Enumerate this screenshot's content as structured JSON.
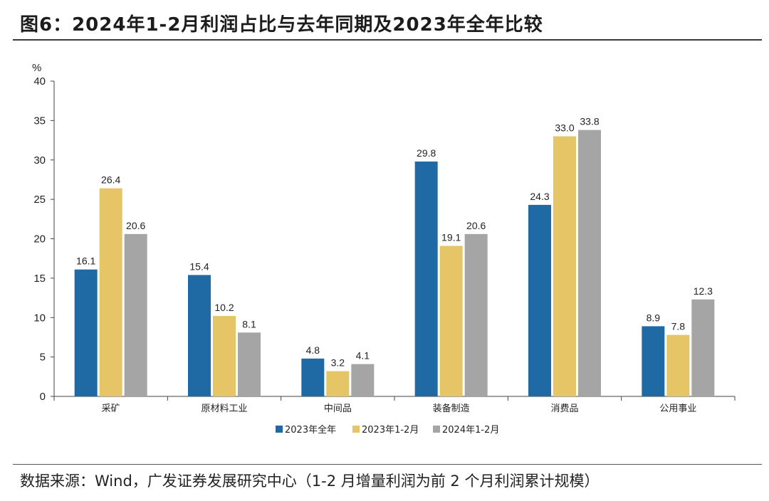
{
  "title": "图6：2024年1-2月利润占比与去年同期及2023年全年比较",
  "source": "数据来源：Wind，广发证券发展研究中心（1-2 月增量利润为前 2 个月利润累计规模）",
  "chart_data": {
    "type": "bar",
    "categories": [
      "采矿",
      "原材料工业",
      "中间品",
      "装备制造",
      "消费品",
      "公用事业"
    ],
    "series": [
      {
        "name": "2023年全年",
        "values": [
          16.1,
          15.4,
          4.8,
          29.8,
          24.3,
          8.9
        ],
        "color": "#1f6aa5"
      },
      {
        "name": "2023年1-2月",
        "values": [
          26.4,
          10.2,
          3.2,
          19.1,
          33.0,
          7.8
        ],
        "color": "#e5c566"
      },
      {
        "name": "2024年1-2月",
        "values": [
          20.6,
          8.1,
          4.1,
          20.6,
          33.8,
          12.3
        ],
        "color": "#a5a5a5"
      }
    ],
    "ylabel": "%",
    "ylim": [
      0,
      40
    ],
    "yticks": [
      0,
      5,
      10,
      15,
      20,
      25,
      30,
      35,
      40
    ],
    "legend_position": "bottom-center"
  }
}
